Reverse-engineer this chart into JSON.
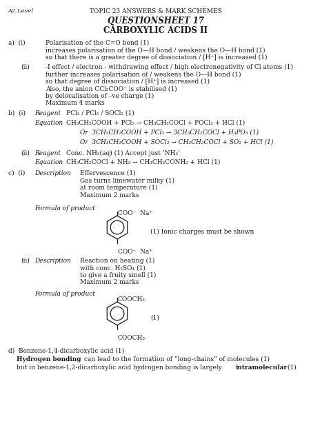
{
  "header_left": "A2 Level",
  "header_center": "TOPIC 23 ANSWERS & MARK SCHEMES",
  "title1": "QUESTIONSHEET 17",
  "title2": "CARBOXYLIC ACIDS II",
  "bg_color": "#ffffff",
  "text_color": "#1a1a1a",
  "fs": 6.5
}
